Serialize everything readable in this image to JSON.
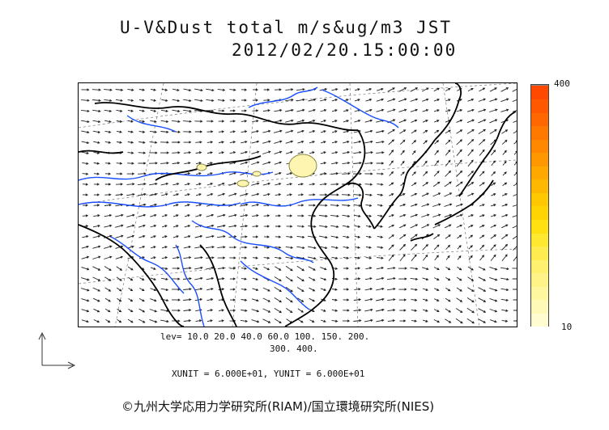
{
  "title": {
    "line1": "U-V&Dust total m/s&ug/m3 JST",
    "line2": "2012/02/20.15:00:00"
  },
  "colorbar": {
    "max_label": "400",
    "min_label": "10",
    "colors": [
      "#fffcd0",
      "#fff9b8",
      "#fff6a0",
      "#fff388",
      "#fff070",
      "#ffec50",
      "#ffe830",
      "#ffe010",
      "#ffd400",
      "#ffc800",
      "#ffb800",
      "#ffa800",
      "#ff9800",
      "#ff8800",
      "#ff7800",
      "#ff6800",
      "#ff5800",
      "#ff4800"
    ]
  },
  "legend": {
    "lev_line1": "lev= 10.0 20.0 40.0 60.0 100. 150. 200.",
    "lev_line2": "300. 400.",
    "unit_line": "XUNIT = 6.000E+01, YUNIT = 6.000E+01"
  },
  "colors": {
    "coast": "#000000",
    "river": "#1a4fff",
    "grid": "#777777",
    "vector": "#222222",
    "dust_fill": "#fdf5b0",
    "dust_edge": "#8a8a40"
  },
  "copyright": "©九州大学応用力学研究所(RIAM)/国立環境研究所(NIES)"
}
